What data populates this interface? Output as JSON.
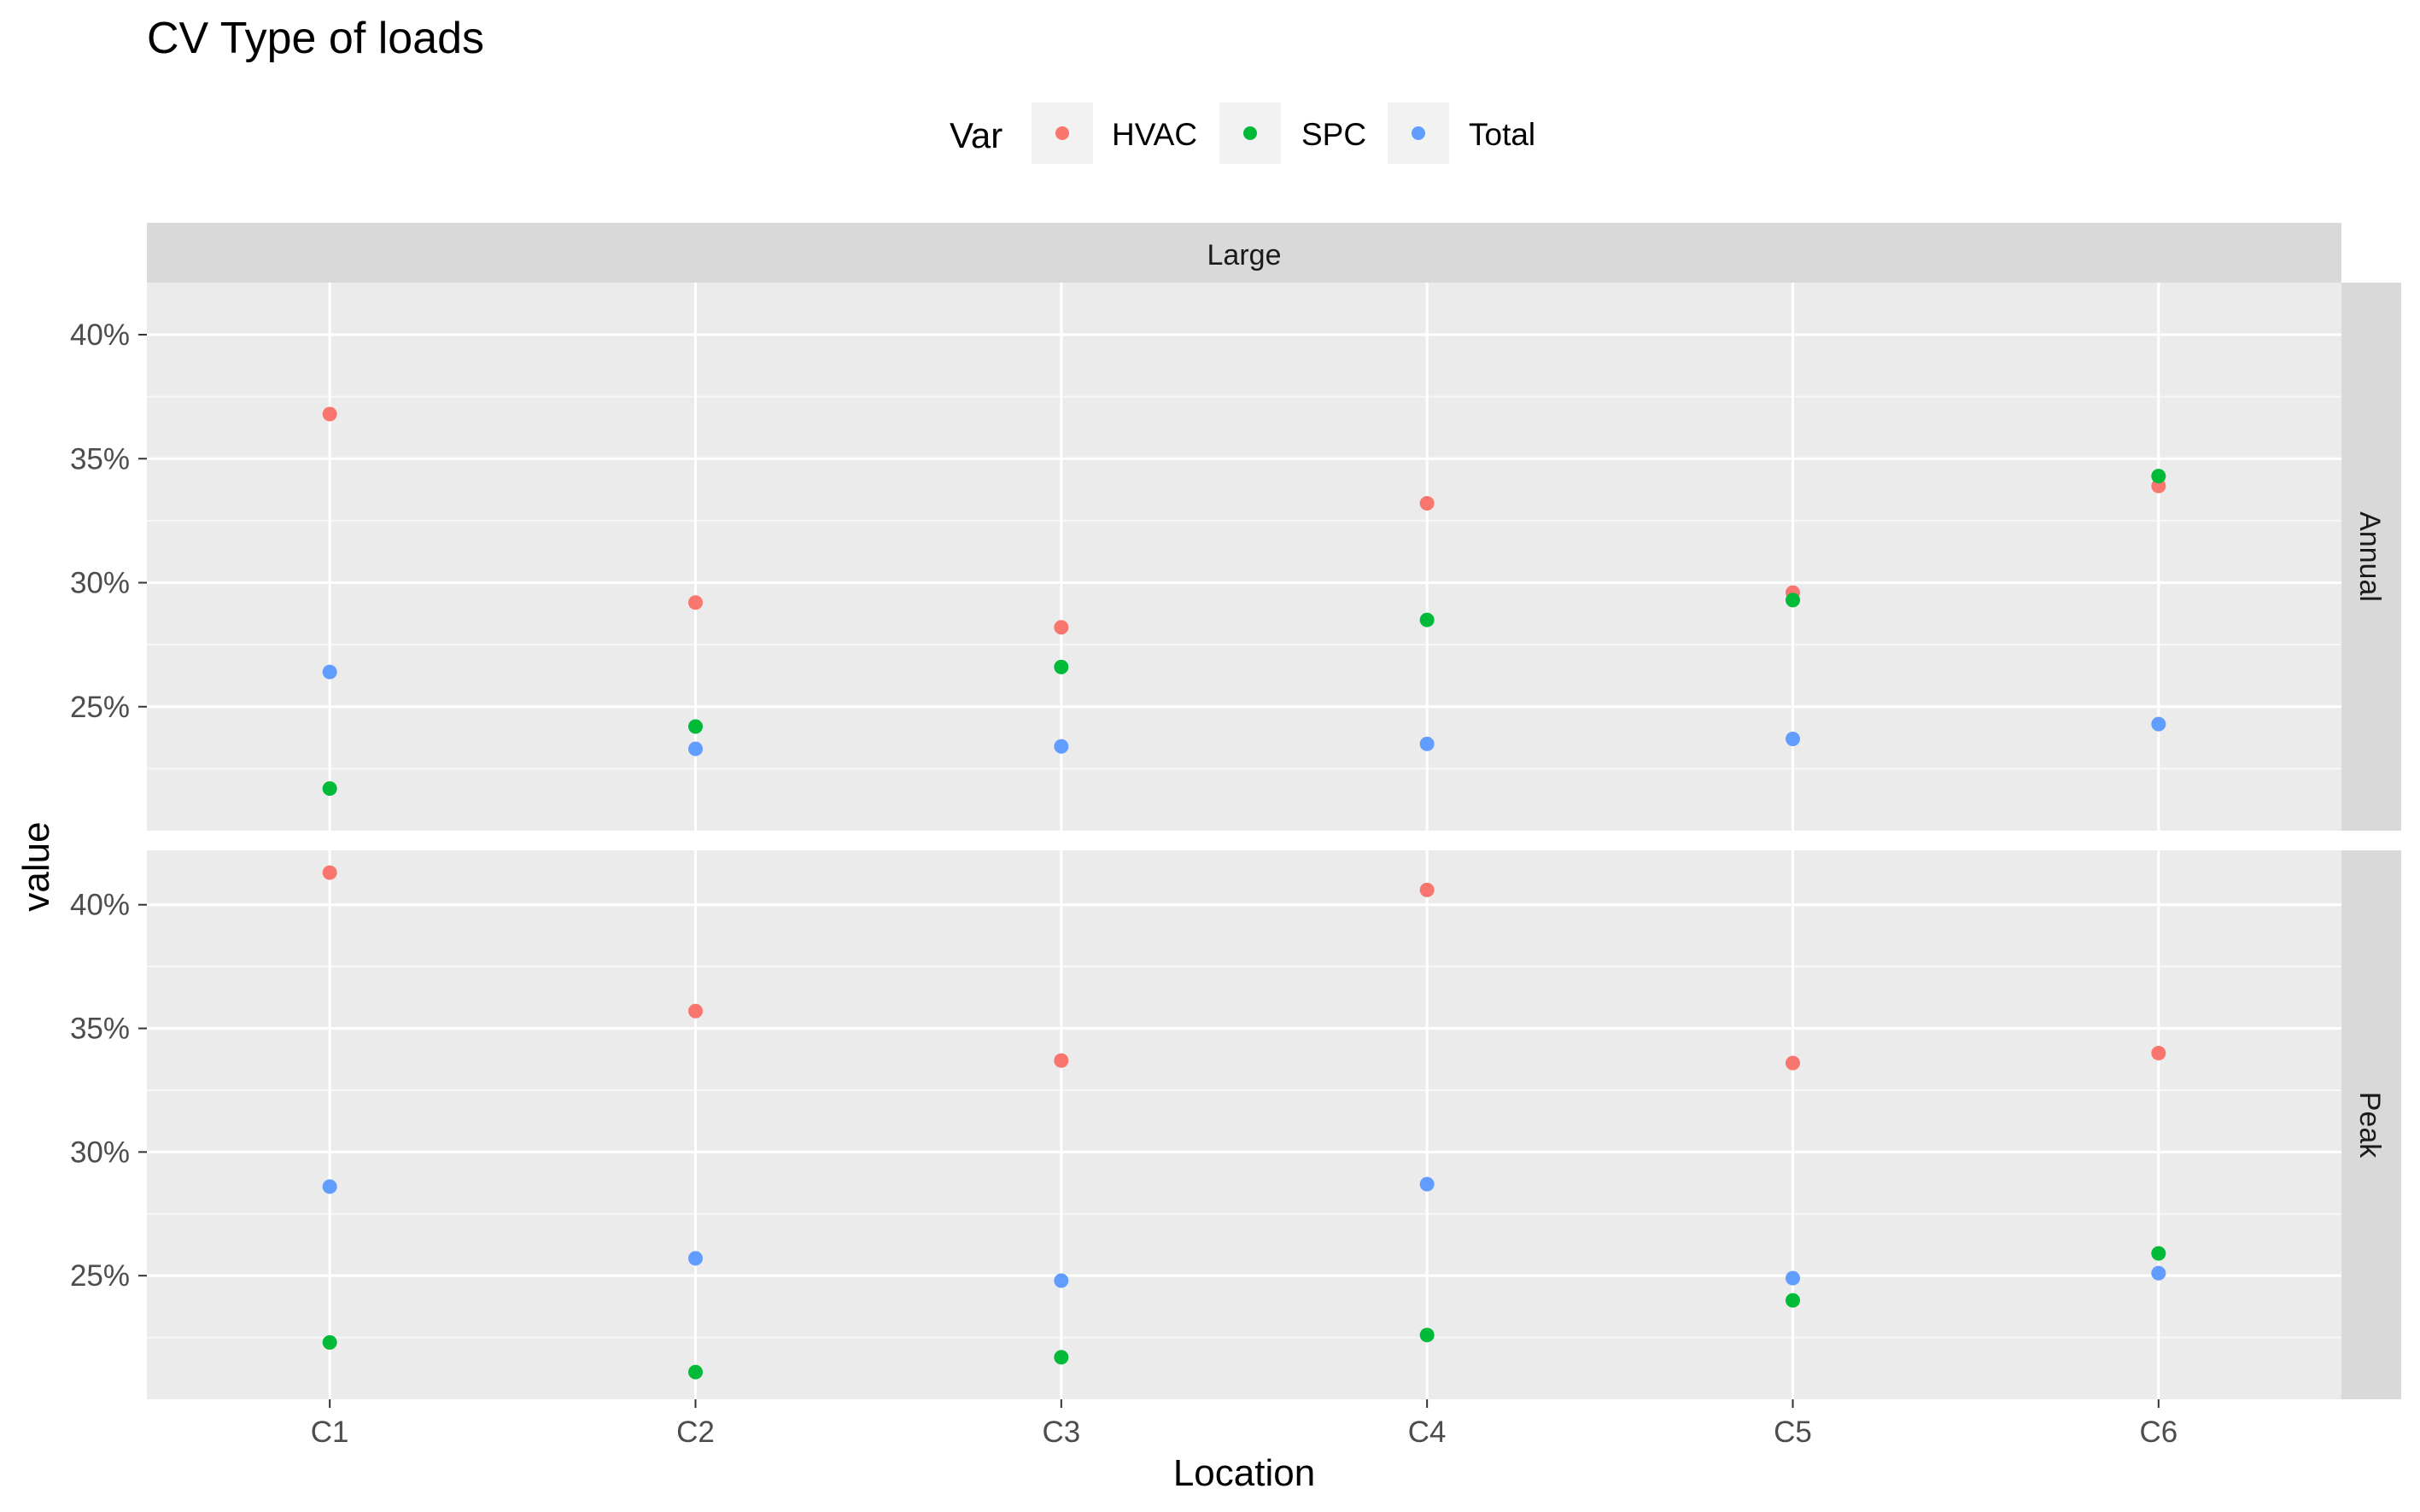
{
  "chart_data": {
    "type": "scatter",
    "title": "CV Type of loads",
    "xlabel": "Location",
    "ylabel": "value",
    "legend": {
      "title": "Var",
      "position": "top",
      "entries": [
        {
          "name": "HVAC",
          "color": "#F8766D"
        },
        {
          "name": "SPC",
          "color": "#00BA38"
        },
        {
          "name": "Total",
          "color": "#619CFF"
        }
      ]
    },
    "facet_column": "Large",
    "categories": [
      "C1",
      "C2",
      "C3",
      "C4",
      "C5",
      "C6"
    ],
    "y_ticks": [
      "25%",
      "30%",
      "35%",
      "40%"
    ],
    "grid": true,
    "panels": [
      {
        "label": "Annual",
        "ylim": [
          0.2,
          0.421
        ],
        "series": [
          {
            "name": "HVAC",
            "values": [
              0.368,
              0.292,
              0.282,
              0.332,
              0.296,
              0.339
            ]
          },
          {
            "name": "SPC",
            "values": [
              0.217,
              0.242,
              0.266,
              0.285,
              0.293,
              0.343
            ]
          },
          {
            "name": "Total",
            "values": [
              0.264,
              0.233,
              0.234,
              0.235,
              0.237,
              0.243
            ]
          }
        ]
      },
      {
        "label": "Peak",
        "ylim": [
          0.2,
          0.422
        ],
        "series": [
          {
            "name": "HVAC",
            "values": [
              0.413,
              0.357,
              0.337,
              0.406,
              0.336,
              0.34
            ]
          },
          {
            "name": "SPC",
            "values": [
              0.223,
              0.211,
              0.217,
              0.226,
              0.24,
              0.259
            ]
          },
          {
            "name": "Total",
            "values": [
              0.286,
              0.257,
              0.248,
              0.287,
              0.249,
              0.251
            ]
          }
        ]
      }
    ]
  }
}
